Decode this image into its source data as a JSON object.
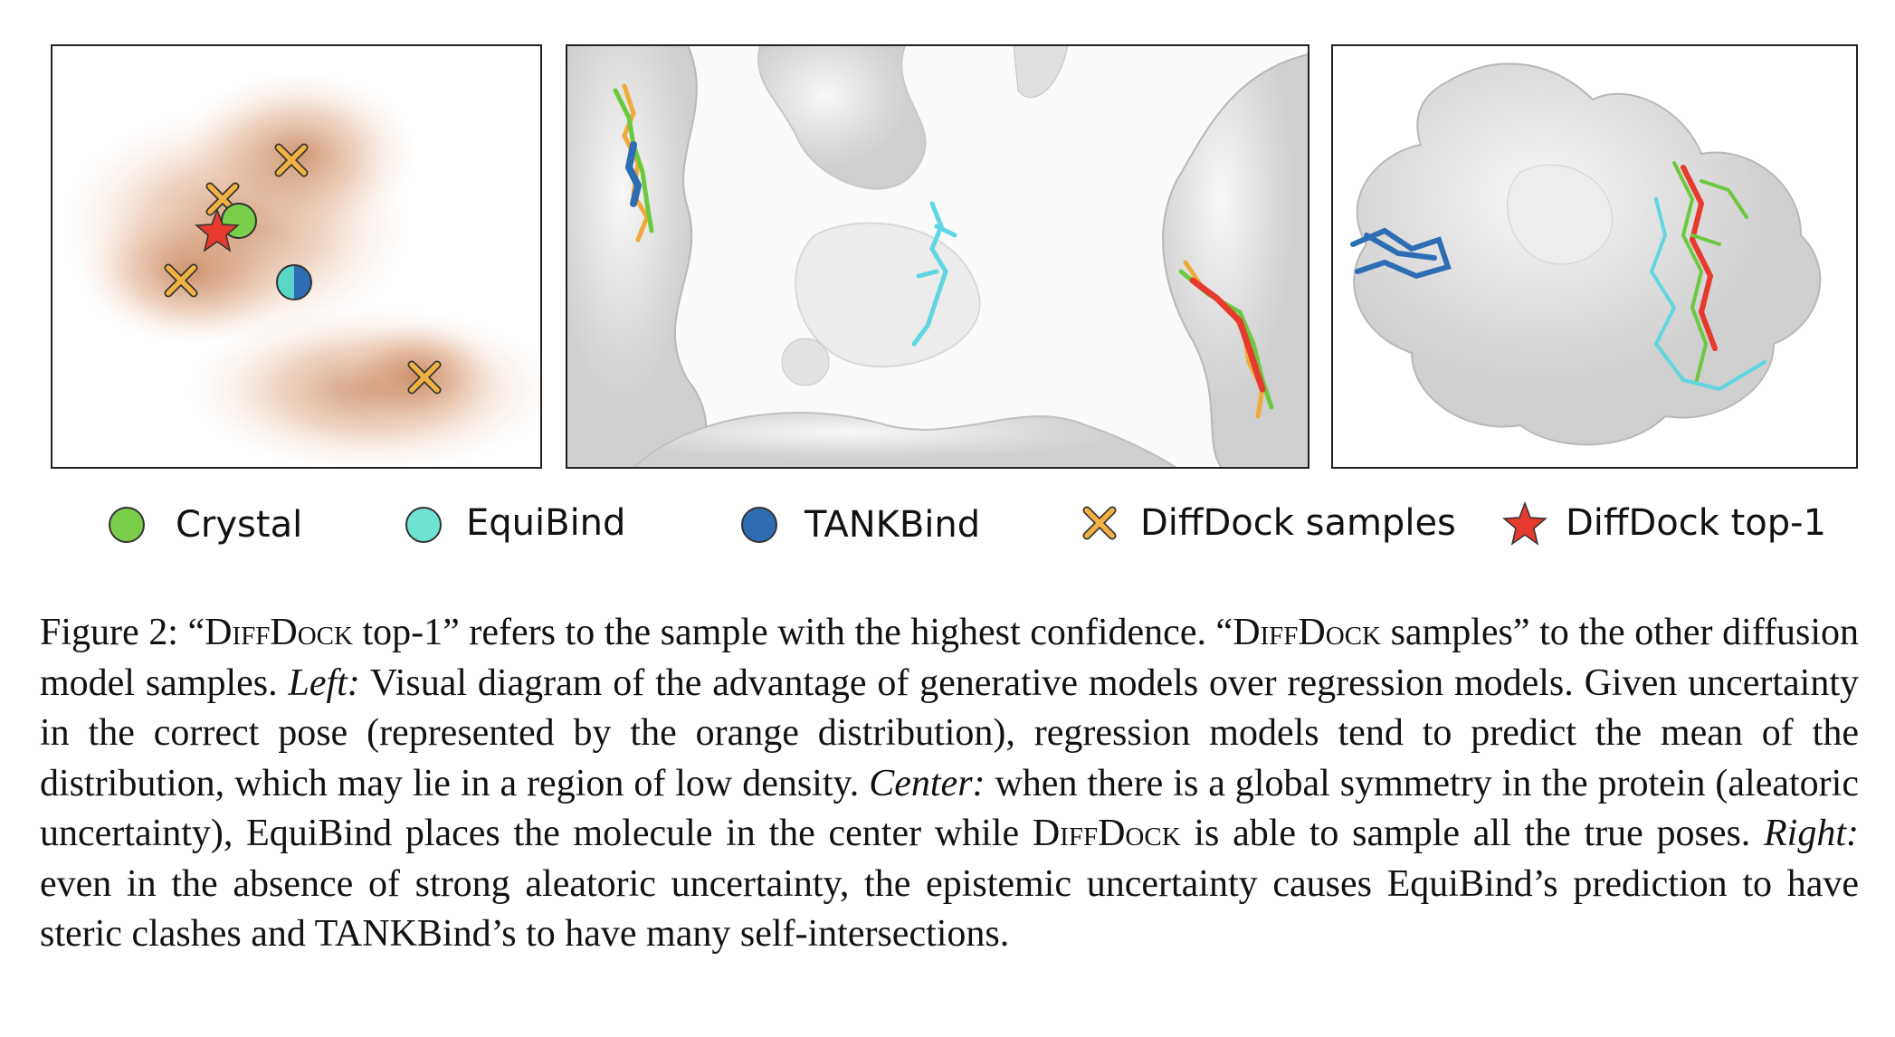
{
  "legend": [
    "Crystal",
    "EquiBind",
    "TANKBind",
    "DiffDock samples",
    "DiffDock top-1"
  ],
  "caption": {
    "parts": [
      "Figure 2: “",
      "DiffDock",
      " top-1” refers to the sample with the highest confidence. “",
      "DiffDock",
      " samples” to the other diffusion model samples. ",
      "Left:",
      " Visual diagram of the advantage of generative models over regression models. Given uncertainty in the correct pose (represented by the orange distribution), regression models tend to predict the mean of the distribution, which may lie in a region of low density. ",
      "Center:",
      " when there is a global symmetry in the protein (aleatoric uncertainty), EquiBind places the molecule in the center while ",
      "DiffDock",
      " is able to sample all the true poses. ",
      "Right:",
      " even in the absence of strong aleatoric uncertainty, the epistemic uncertainty causes EquiBind’s prediction to have steric clashes and TANKBind’s to have many self-intersections."
    ]
  }
}
